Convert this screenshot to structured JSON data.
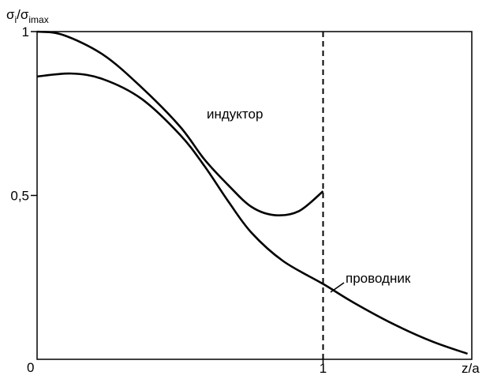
{
  "chart_data": {
    "type": "line",
    "ylabel_parts": [
      "σ",
      "i",
      "/σ",
      "imax"
    ],
    "xlabel": "z/a",
    "origin_label": "0",
    "xlim": [
      0,
      1.52
    ],
    "ylim": [
      0,
      1
    ],
    "xticks": [
      1
    ],
    "yticks": [
      {
        "value": 0.5,
        "label": "0,5"
      },
      1
    ],
    "vline": 1,
    "series": [
      {
        "name": "индуктор",
        "color": "#000000",
        "x": [
          0,
          0.09,
          0.23,
          0.365,
          0.5,
          0.585,
          0.67,
          0.75,
          0.83,
          0.915,
          1
        ],
        "values": [
          1,
          0.99,
          0.93,
          0.83,
          0.71,
          0.61,
          0.53,
          0.465,
          0.44,
          0.452,
          0.513
        ]
      },
      {
        "name": "проводник",
        "color": "#000000",
        "x": [
          0,
          0.12,
          0.23,
          0.365,
          0.5,
          0.585,
          0.67,
          0.75,
          0.86,
          1,
          1.107,
          1.245,
          1.38,
          1.505
        ],
        "values": [
          0.863,
          0.872,
          0.855,
          0.795,
          0.685,
          0.59,
          0.48,
          0.386,
          0.3,
          0.23,
          0.173,
          0.108,
          0.055,
          0.017
        ]
      }
    ]
  }
}
